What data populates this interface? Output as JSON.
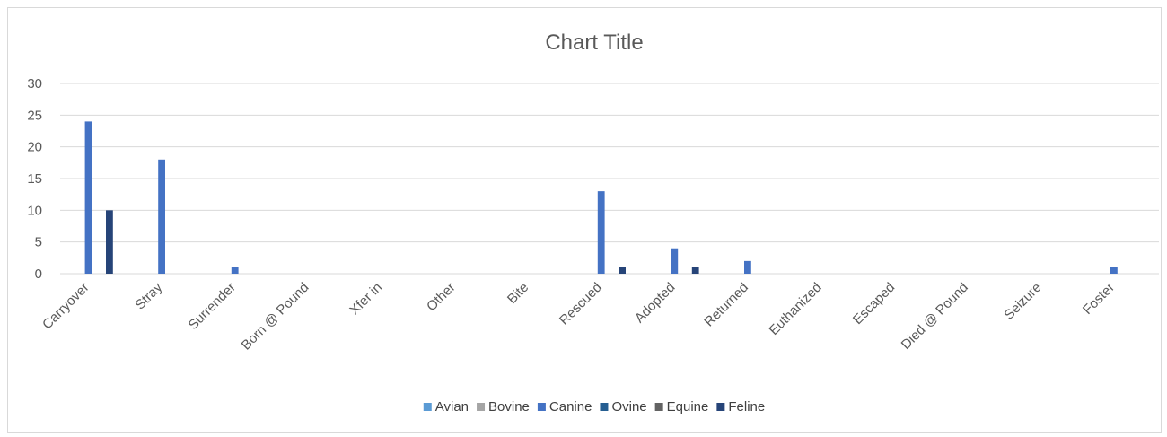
{
  "chart_data": {
    "type": "bar",
    "title": "Chart Title",
    "xlabel": "",
    "ylabel": "",
    "ylim": [
      0,
      30
    ],
    "yticks": [
      0,
      5,
      10,
      15,
      20,
      25,
      30
    ],
    "grid": true,
    "legend_position": "bottom",
    "categories": [
      "Carryover",
      "Stray",
      "Surrender",
      "Born @ Pound",
      "Xfer in",
      "Other",
      "Bite",
      "Rescued",
      "Adopted",
      "Returned",
      "Euthanized",
      "Escaped",
      "Died @ Pound",
      "Seizure",
      "Foster"
    ],
    "series": [
      {
        "name": "Avian",
        "color": "#5b9bd5",
        "values": [
          0,
          0,
          0,
          0,
          0,
          0,
          0,
          0,
          0,
          0,
          0,
          0,
          0,
          0,
          0
        ]
      },
      {
        "name": "Bovine",
        "color": "#a5a5a5",
        "values": [
          0,
          0,
          0,
          0,
          0,
          0,
          0,
          0,
          0,
          0,
          0,
          0,
          0,
          0,
          0
        ]
      },
      {
        "name": "Canine",
        "color": "#4472c4",
        "values": [
          24,
          18,
          1,
          0,
          0,
          0,
          0,
          13,
          4,
          2,
          0,
          0,
          0,
          0,
          1
        ]
      },
      {
        "name": "Ovine",
        "color": "#255e91",
        "values": [
          0,
          0,
          0,
          0,
          0,
          0,
          0,
          0,
          0,
          0,
          0,
          0,
          0,
          0,
          0
        ]
      },
      {
        "name": "Equine",
        "color": "#636363",
        "values": [
          0,
          0,
          0,
          0,
          0,
          0,
          0,
          0,
          0,
          0,
          0,
          0,
          0,
          0,
          0
        ]
      },
      {
        "name": "Feline",
        "color": "#264478",
        "values": [
          10,
          0,
          0,
          0,
          0,
          0,
          0,
          1,
          1,
          0,
          0,
          0,
          0,
          0,
          0
        ]
      }
    ]
  },
  "colors": {
    "gridline": "#d9d9d9",
    "text": "#595959",
    "border": "#d9d9d9"
  }
}
